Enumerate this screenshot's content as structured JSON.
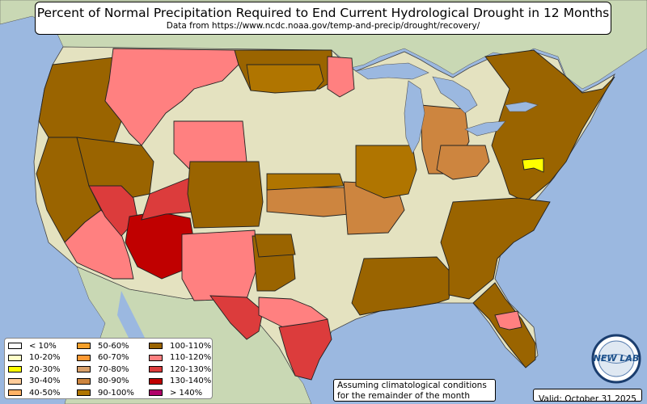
{
  "title": "Percent of Normal Precipitation Required to End Current Hydrological Drought in 12 Months",
  "subtitle": "Data from https://www.ncdc.noaa.gov/temp-and-precip/drought/recovery/",
  "colors": {
    "ocean": "#9bb8e0",
    "land_no_drought": "#e4e2c0",
    "land_foreign": "#c9d8b4",
    "lakes": "#9bb8e0"
  },
  "legend": [
    {
      "label": "< 10%",
      "color": "#ffffff"
    },
    {
      "label": "10-20%",
      "color": "#ffffc8"
    },
    {
      "label": "20-30%",
      "color": "#ffff00"
    },
    {
      "label": "30-40%",
      "color": "#ffcc99"
    },
    {
      "label": "40-50%",
      "color": "#ffb266"
    },
    {
      "label": "50-60%",
      "color": "#f5a02a"
    },
    {
      "label": "60-70%",
      "color": "#ff9933"
    },
    {
      "label": "70-80%",
      "color": "#d9a06a"
    },
    {
      "label": "80-90%",
      "color": "#cd853f"
    },
    {
      "label": "90-100%",
      "color": "#b07500"
    },
    {
      "label": "100-110%",
      "color": "#9a6400"
    },
    {
      "label": "110-120%",
      "color": "#ff8080"
    },
    {
      "label": "120-130%",
      "color": "#dc3c3c"
    },
    {
      "label": "130-140%",
      "color": "#c00000"
    },
    {
      "label": "> 140%",
      "color": "#b0006a"
    }
  ],
  "note_lines": [
    "Assuming climatological conditions",
    "for the remainder of the month"
  ],
  "valid": "Valid: October 31 2025",
  "logo_text": "NEW LAB",
  "regions": [
    {
      "name": "pacific-northwest",
      "category": "100-110%"
    },
    {
      "name": "northern-rockies",
      "category": "110-120%"
    },
    {
      "name": "montana-east",
      "category": "100-110%"
    },
    {
      "name": "california-north",
      "category": "100-110%"
    },
    {
      "name": "california-south",
      "category": "110-120%"
    },
    {
      "name": "great-basin",
      "category": "100-110%"
    },
    {
      "name": "nevada-south",
      "category": "120-130%"
    },
    {
      "name": "arizona",
      "category": "130-140%"
    },
    {
      "name": "utah-east",
      "category": "120-130%"
    },
    {
      "name": "wyoming",
      "category": "110-120%"
    },
    {
      "name": "colorado",
      "category": "100-110%"
    },
    {
      "name": "new-mexico",
      "category": "110-120%"
    },
    {
      "name": "texas-west",
      "category": "120-130%"
    },
    {
      "name": "texas-central",
      "category": "110-120%"
    },
    {
      "name": "texas-south",
      "category": "120-130%"
    },
    {
      "name": "texas-panhandle",
      "category": "100-110%"
    },
    {
      "name": "north-dakota",
      "category": "90-100%"
    },
    {
      "name": "minnesota-north",
      "category": "110-120%"
    },
    {
      "name": "kansas-east",
      "category": "80-90%"
    },
    {
      "name": "missouri-ozarks",
      "category": "80-90%"
    },
    {
      "name": "midwest",
      "category": "90-100%"
    },
    {
      "name": "michigan",
      "category": "80-90%"
    },
    {
      "name": "ohio-valley",
      "category": "80-90%"
    },
    {
      "name": "northeast",
      "category": "100-110%"
    },
    {
      "name": "maryland",
      "category": "20-30%"
    },
    {
      "name": "deep-south",
      "category": "100-110%"
    },
    {
      "name": "southeast",
      "category": "100-110%"
    },
    {
      "name": "florida",
      "category": "100-110%"
    },
    {
      "name": "florida-north",
      "category": "110-120%"
    },
    {
      "name": "nebraska",
      "category": "90-100%"
    },
    {
      "name": "oklahoma-west",
      "category": "100-110%"
    }
  ]
}
